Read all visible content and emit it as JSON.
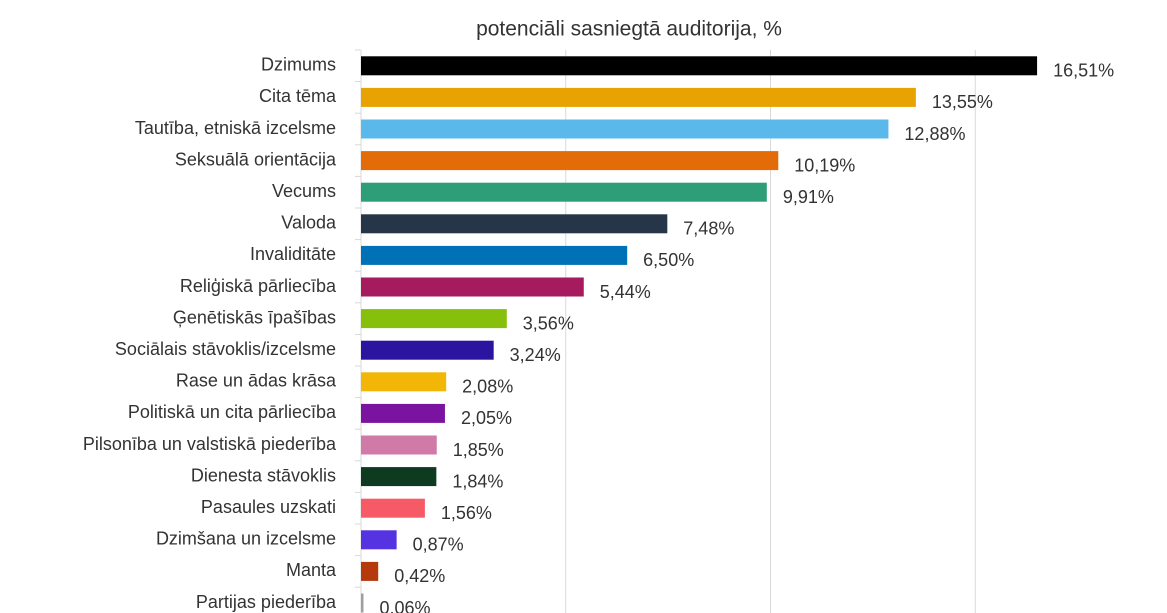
{
  "chart_data": {
    "type": "barh",
    "title": "potenciāli sasniegtā auditorija, %",
    "categories": [
      "Dzimums",
      "Cita tēma",
      "Tautība, etniskā izcelsme",
      "Seksuālā orientācija",
      "Vecums",
      "Valoda",
      "Invaliditāte",
      "Reliģiskā pārliecība",
      "Ģenētiskās īpašības",
      "Sociālais stāvoklis/izcelsme",
      "Rase un ādas krāsa",
      "Politiskā un cita pārliecība",
      "Pilsonība un valstiskā piederība",
      "Dienesta stāvoklis",
      "Pasaules uzskati",
      "Dzimšana un izcelsme",
      "Manta",
      "Partijas piederība"
    ],
    "values": [
      16.51,
      13.55,
      12.88,
      10.19,
      9.91,
      7.48,
      6.5,
      5.44,
      3.56,
      3.24,
      2.08,
      2.05,
      1.85,
      1.84,
      1.56,
      0.87,
      0.42,
      0.06
    ],
    "value_labels": [
      "16,51%",
      "13,55%",
      "12,88%",
      "10,19%",
      "9,91%",
      "7,48%",
      "6,50%",
      "5,44%",
      "3,56%",
      "3,24%",
      "2,08%",
      "2,05%",
      "1,85%",
      "1,84%",
      "1,56%",
      "0,87%",
      "0,42%",
      "0,06%"
    ],
    "colors": [
      "#000000",
      "#e8a202",
      "#5bb8ea",
      "#e36c09",
      "#2e9e78",
      "#263547",
      "#0071b6",
      "#a61a5e",
      "#86bf0c",
      "#2a14a0",
      "#f2b606",
      "#7a14a0",
      "#d07aa8",
      "#0e3a1f",
      "#f55a66",
      "#5533e0",
      "#b5390c",
      "#9e9e9e"
    ],
    "xlim": [
      0,
      20
    ],
    "xticks": [
      0,
      5,
      10,
      15
    ],
    "grid": true
  }
}
